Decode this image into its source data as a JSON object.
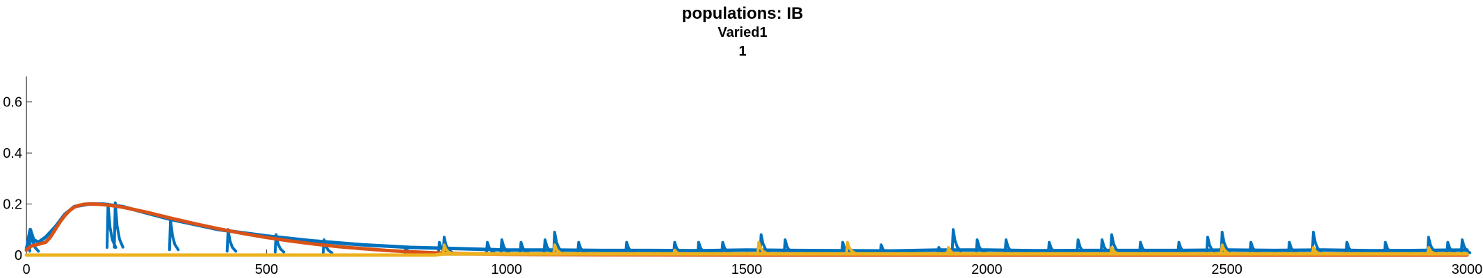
{
  "chart_data": {
    "type": "line",
    "title": "populations: IB",
    "subtitle": "Varied1",
    "subtitle2": "1",
    "xlim": [
      0,
      3000
    ],
    "ylim": [
      0,
      0.7
    ],
    "xticks": [
      0,
      500,
      1000,
      1500,
      2000,
      2500,
      3000
    ],
    "yticks": [
      0,
      0.2,
      0.4,
      0.6
    ],
    "xtick_labels": [
      "0",
      "500",
      "1000",
      "1500",
      "2000",
      "2500",
      "3000"
    ],
    "ytick_labels": [
      "0",
      "0.2",
      "0.4",
      "0.6"
    ],
    "grid": false,
    "series": [
      {
        "color": "#0072BD",
        "x": [
          0,
          8,
          15,
          25,
          40,
          60,
          80,
          100,
          130,
          160,
          200,
          250,
          300,
          350,
          400,
          500,
          600,
          700,
          800,
          900,
          1000,
          1100,
          1200,
          1300,
          1400,
          1500,
          1600,
          1700,
          1800,
          1900,
          2000,
          2100,
          2200,
          2300,
          2400,
          2500,
          2600,
          2700,
          2800,
          2900,
          3000
        ],
        "y": [
          0.02,
          0.1,
          0.06,
          0.05,
          0.07,
          0.11,
          0.16,
          0.19,
          0.2,
          0.2,
          0.19,
          0.165,
          0.14,
          0.12,
          0.1,
          0.075,
          0.055,
          0.04,
          0.03,
          0.025,
          0.02,
          0.02,
          0.018,
          0.018,
          0.017,
          0.02,
          0.018,
          0.017,
          0.016,
          0.02,
          0.02,
          0.017,
          0.018,
          0.018,
          0.018,
          0.02,
          0.018,
          0.02,
          0.017,
          0.018,
          0.02
        ],
        "peaks": [
          [
            9,
            0.1
          ],
          [
            170,
            0.2
          ],
          [
            185,
            0.205
          ],
          [
            300,
            0.14
          ],
          [
            420,
            0.1
          ],
          [
            520,
            0.08
          ],
          [
            620,
            0.06
          ],
          [
            790,
            0.03
          ],
          [
            860,
            0.05
          ],
          [
            870,
            0.07
          ],
          [
            960,
            0.05
          ],
          [
            990,
            0.06
          ],
          [
            1030,
            0.05
          ],
          [
            1080,
            0.06
          ],
          [
            1100,
            0.09
          ],
          [
            1150,
            0.05
          ],
          [
            1250,
            0.05
          ],
          [
            1350,
            0.05
          ],
          [
            1400,
            0.05
          ],
          [
            1450,
            0.05
          ],
          [
            1530,
            0.08
          ],
          [
            1580,
            0.06
          ],
          [
            1700,
            0.05
          ],
          [
            1780,
            0.04
          ],
          [
            1900,
            0.03
          ],
          [
            1930,
            0.1
          ],
          [
            1980,
            0.06
          ],
          [
            2040,
            0.06
          ],
          [
            2130,
            0.05
          ],
          [
            2190,
            0.06
          ],
          [
            2240,
            0.06
          ],
          [
            2260,
            0.08
          ],
          [
            2320,
            0.05
          ],
          [
            2400,
            0.05
          ],
          [
            2460,
            0.07
          ],
          [
            2490,
            0.09
          ],
          [
            2550,
            0.05
          ],
          [
            2630,
            0.05
          ],
          [
            2680,
            0.09
          ],
          [
            2750,
            0.05
          ],
          [
            2830,
            0.05
          ],
          [
            2920,
            0.07
          ],
          [
            2960,
            0.05
          ],
          [
            2990,
            0.06
          ]
        ]
      },
      {
        "color": "#D95319",
        "x": [
          0,
          10,
          20,
          30,
          40,
          50,
          60,
          70,
          80,
          90,
          100,
          110,
          120,
          130,
          140,
          150,
          170,
          200,
          250,
          300,
          350,
          400,
          450,
          500,
          550,
          600,
          650,
          700,
          750,
          800,
          850,
          900,
          1000,
          1200,
          1500,
          2000,
          2500,
          3000
        ],
        "y": [
          0.02,
          0.035,
          0.04,
          0.045,
          0.05,
          0.07,
          0.1,
          0.13,
          0.155,
          0.175,
          0.188,
          0.195,
          0.199,
          0.2,
          0.2,
          0.199,
          0.196,
          0.188,
          0.168,
          0.145,
          0.123,
          0.103,
          0.085,
          0.069,
          0.055,
          0.043,
          0.033,
          0.025,
          0.018,
          0.013,
          0.009,
          0.006,
          0.003,
          0.001,
          0.0,
          0.0,
          0.0,
          0.0
        ],
        "peaks": []
      },
      {
        "color": "#EDB120",
        "x": [
          0,
          500,
          850,
          870,
          1000,
          1500,
          2000,
          2500,
          3000
        ],
        "y": [
          0.0,
          0.0,
          0.0,
          0.005,
          0.005,
          0.005,
          0.005,
          0.005,
          0.005
        ],
        "peaks": [
          [
            870,
            0.04
          ],
          [
            1100,
            0.04
          ],
          [
            1350,
            0.02
          ],
          [
            1525,
            0.05
          ],
          [
            1710,
            0.05
          ],
          [
            1920,
            0.03
          ],
          [
            2260,
            0.03
          ],
          [
            2490,
            0.04
          ],
          [
            2680,
            0.03
          ],
          [
            2920,
            0.03
          ]
        ]
      }
    ]
  }
}
